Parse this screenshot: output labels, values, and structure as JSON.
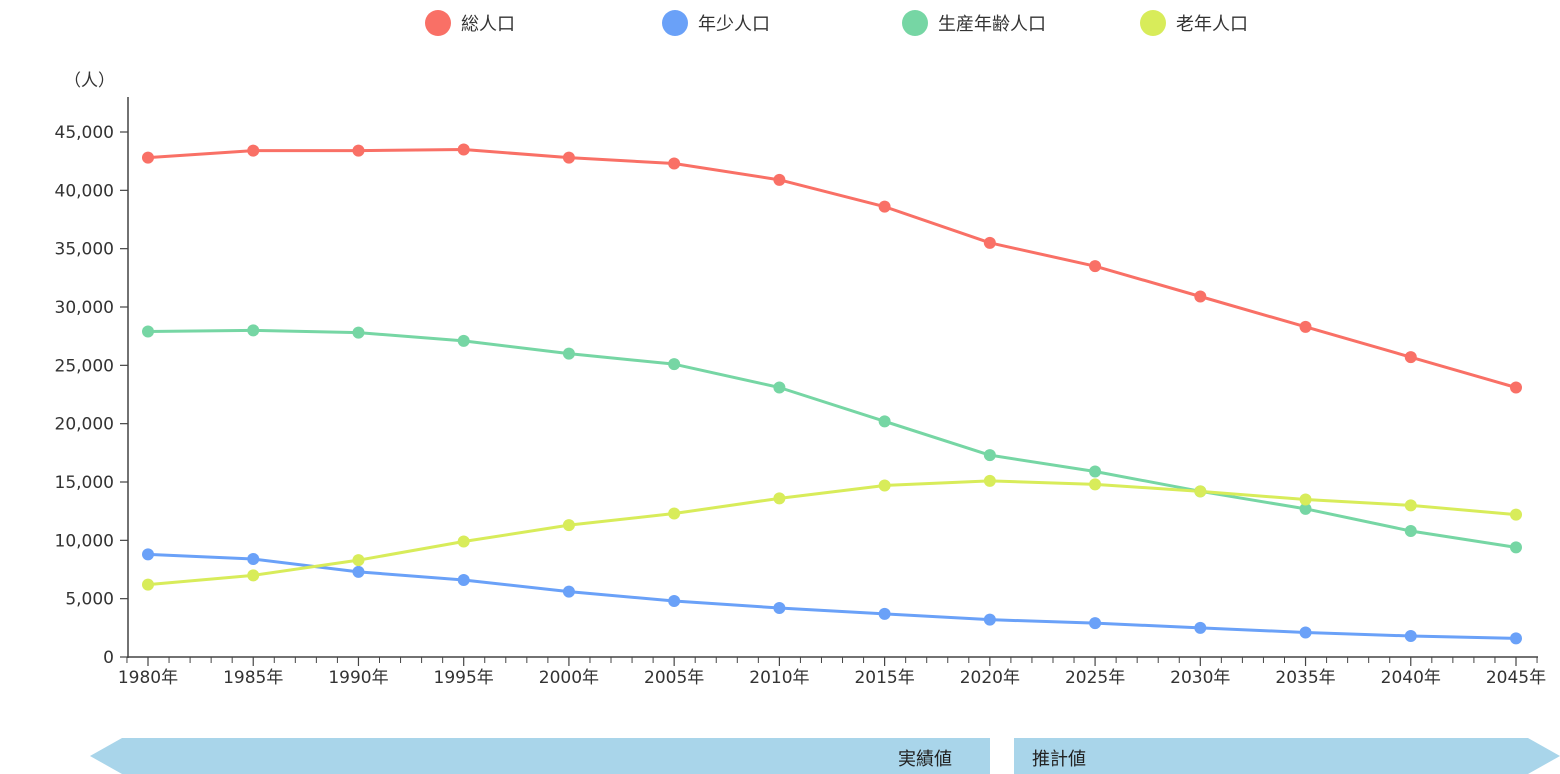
{
  "chart_data": {
    "type": "line",
    "unit_label": "（人）",
    "categories": [
      "1980年",
      "1985年",
      "1990年",
      "1995年",
      "2000年",
      "2005年",
      "2010年",
      "2015年",
      "2020年",
      "2025年",
      "2030年",
      "2035年",
      "2040年",
      "2045年"
    ],
    "ylim": [
      0,
      48000
    ],
    "yticks": [
      0,
      5000,
      10000,
      15000,
      20000,
      25000,
      30000,
      35000,
      40000,
      45000
    ],
    "ytick_labels": [
      "0",
      "5,000",
      "10,000",
      "15,000",
      "20,000",
      "25,000",
      "30,000",
      "35,000",
      "40,000",
      "45,000"
    ],
    "legend_position": "top",
    "series": [
      {
        "name": "総人口",
        "color": "#f97066",
        "values": [
          42800,
          43400,
          43400,
          43500,
          42800,
          42300,
          40900,
          38600,
          35500,
          33500,
          30900,
          28300,
          25700,
          23100
        ]
      },
      {
        "name": "年少人口",
        "color": "#6aa1f8",
        "values": [
          8800,
          8400,
          7300,
          6600,
          5600,
          4800,
          4200,
          3700,
          3200,
          2900,
          2500,
          2100,
          1800,
          1600
        ]
      },
      {
        "name": "生産年齢人口",
        "color": "#76d6a4",
        "values": [
          27900,
          28000,
          27800,
          27100,
          26000,
          25100,
          23100,
          20200,
          17300,
          15900,
          14200,
          12700,
          10800,
          9400
        ]
      },
      {
        "name": "老年人口",
        "color": "#d8ec5a",
        "values": [
          6200,
          7000,
          8300,
          9900,
          11300,
          12300,
          13600,
          14700,
          15100,
          14800,
          14200,
          13500,
          13000,
          12200
        ]
      }
    ]
  },
  "bands": {
    "actual_label": "実績値",
    "forecast_label": "推計値",
    "color": "#a9d5ea"
  }
}
